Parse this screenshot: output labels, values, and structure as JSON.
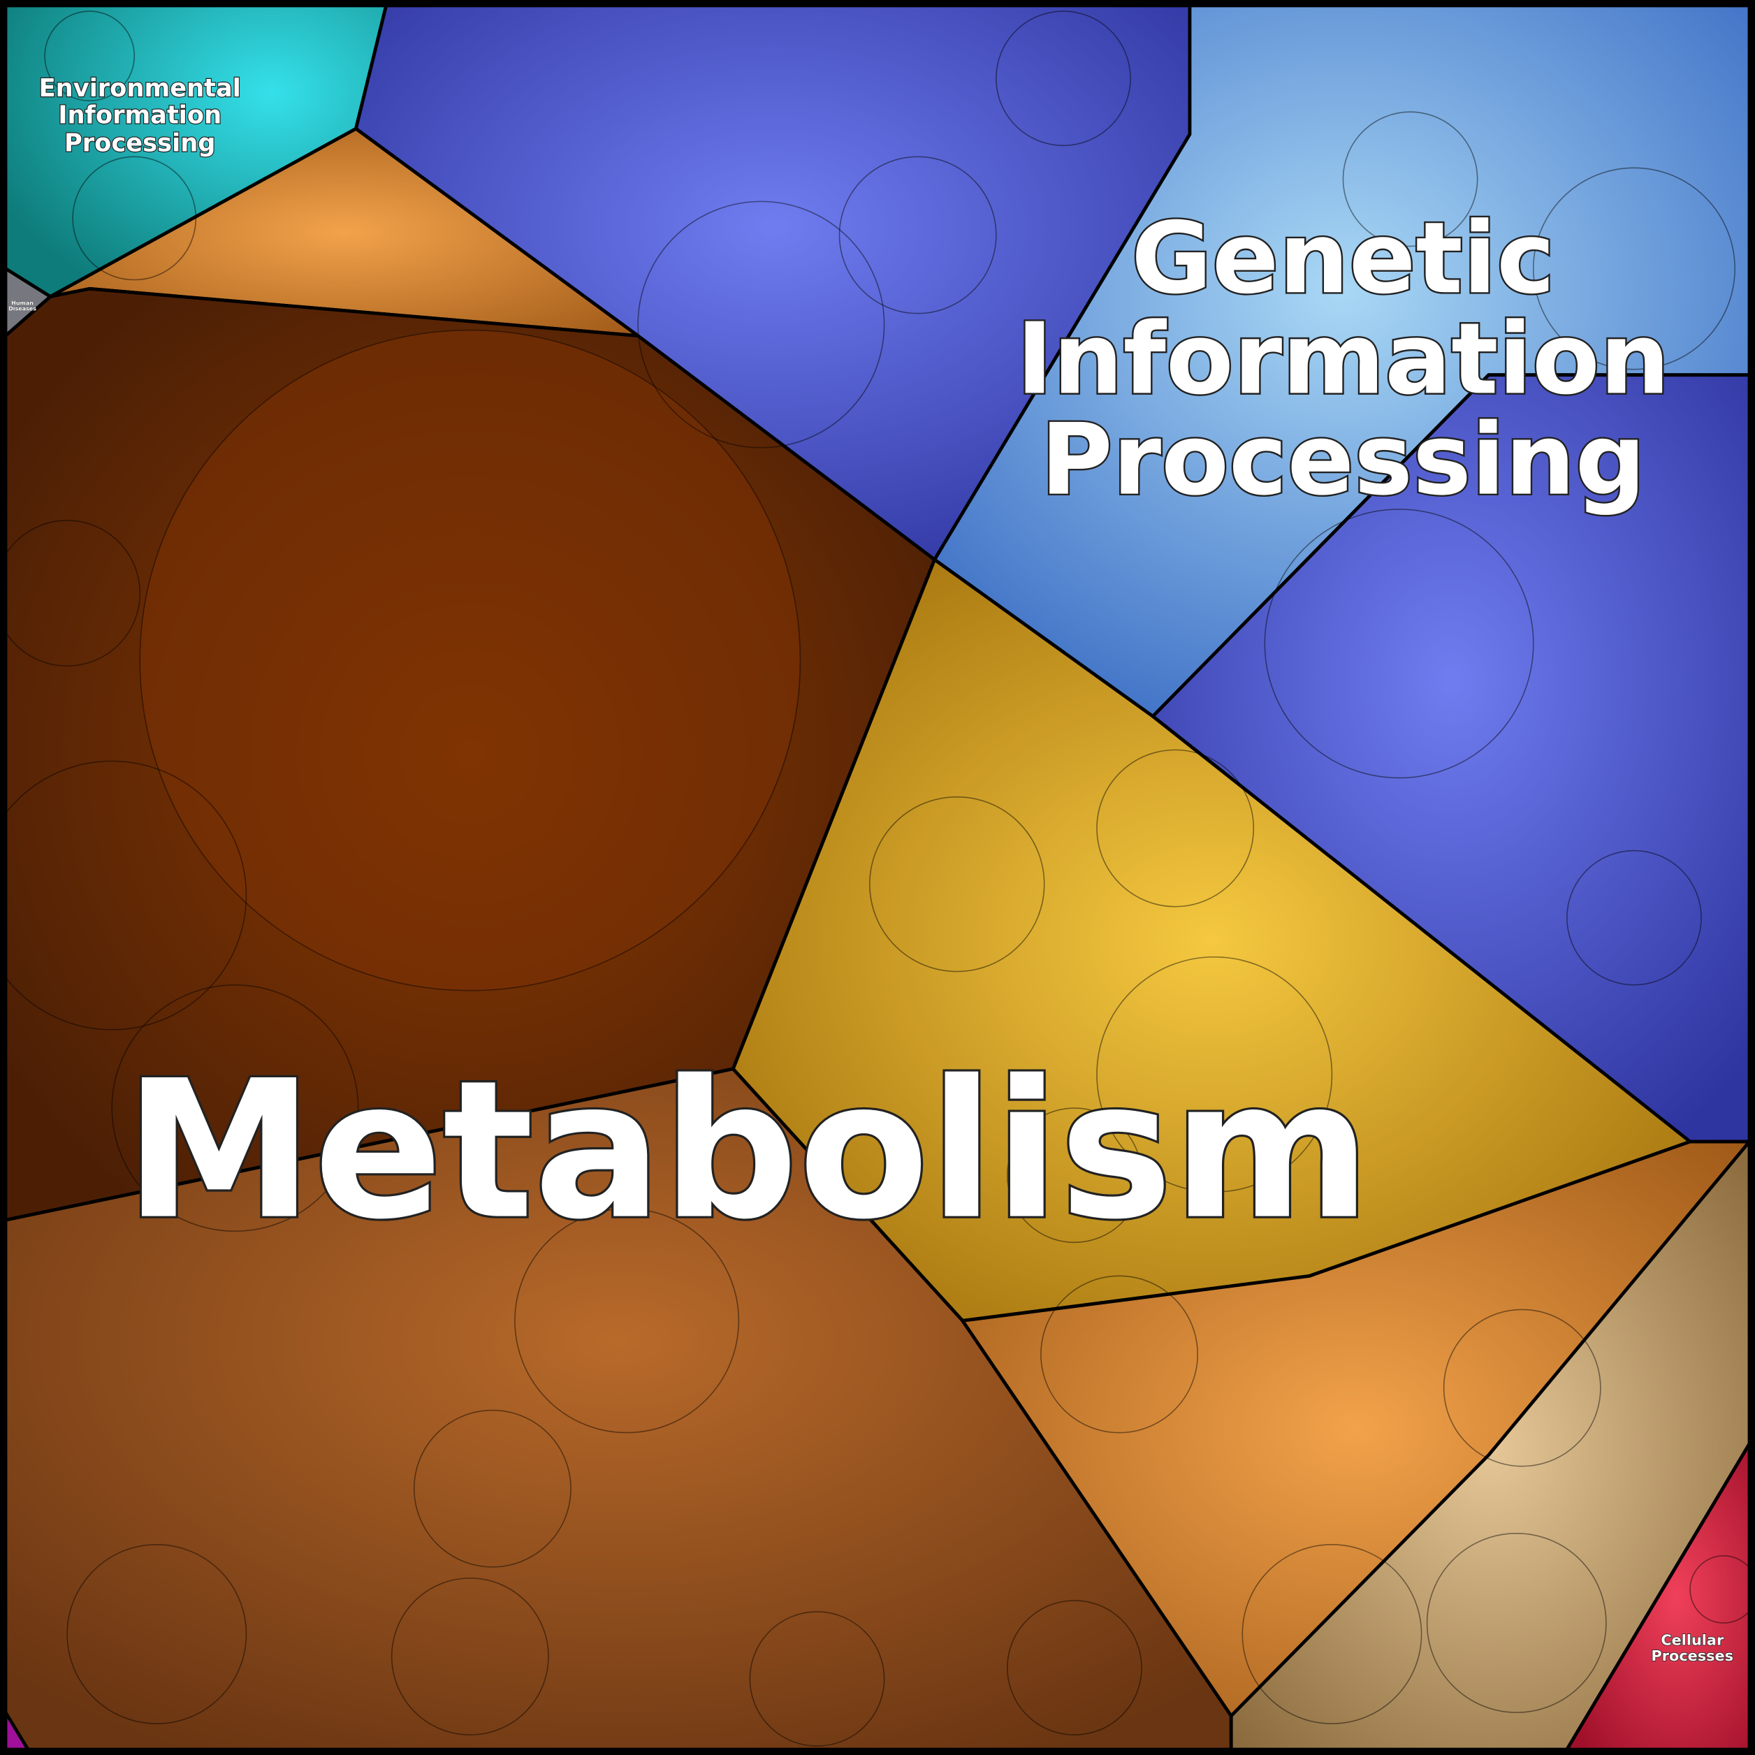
{
  "regions": [
    {
      "name": "Metabolism",
      "lines": [
        "Metabolism"
      ]
    },
    {
      "name": "Genetic Information Processing",
      "lines": [
        "Genetic",
        "Information",
        "Processing"
      ]
    },
    {
      "name": "Environmental Information Processing",
      "lines": [
        "Environmental",
        "Information",
        "Processing"
      ]
    },
    {
      "name": "Cellular Processes",
      "lines": [
        "Cellular",
        "Processes"
      ]
    },
    {
      "name": "Human Diseases",
      "lines": [
        "Human",
        "Diseases"
      ]
    }
  ]
}
